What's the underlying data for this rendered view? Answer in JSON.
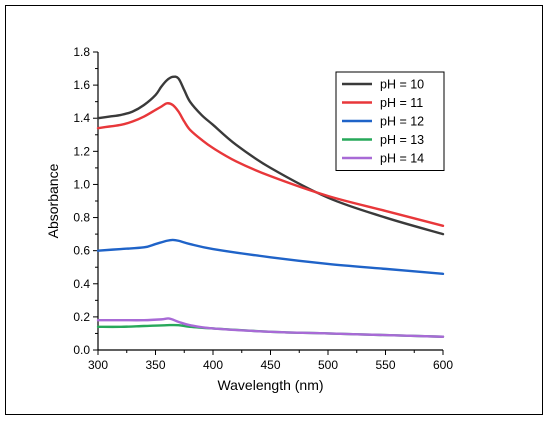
{
  "chart_data": {
    "type": "line",
    "title": "",
    "xlabel": "Wavelength (nm)",
    "ylabel": "Absorbance",
    "xlim": [
      300,
      600
    ],
    "ylim": [
      0.0,
      1.8
    ],
    "xticks": [
      300,
      350,
      400,
      450,
      500,
      550,
      600
    ],
    "xtick_labels": [
      "300",
      "350",
      "400",
      "450",
      "500",
      "550",
      "600"
    ],
    "yticks": [
      0.0,
      0.2,
      0.4,
      0.6,
      0.8,
      1.0,
      1.2,
      1.4,
      1.6,
      1.8
    ],
    "ytick_labels": [
      "0.0",
      "0.2",
      "0.4",
      "0.6",
      "0.8",
      "1.0",
      "1.2",
      "1.4",
      "1.6",
      "1.8"
    ],
    "grid": false,
    "legend_position": "top-right",
    "series": [
      {
        "name": "pH = 10",
        "color": "#3a3a3a",
        "x": [
          300,
          310,
          320,
          330,
          340,
          350,
          355,
          360,
          365,
          370,
          375,
          380,
          390,
          400,
          420,
          450,
          500,
          550,
          600
        ],
        "y": [
          1.4,
          1.41,
          1.42,
          1.44,
          1.48,
          1.54,
          1.59,
          1.63,
          1.65,
          1.64,
          1.57,
          1.5,
          1.42,
          1.36,
          1.24,
          1.1,
          0.92,
          0.8,
          0.7
        ]
      },
      {
        "name": "pH = 11",
        "color": "#e8373a",
        "x": [
          300,
          310,
          320,
          330,
          340,
          350,
          355,
          360,
          365,
          370,
          375,
          380,
          390,
          400,
          420,
          450,
          500,
          550,
          600
        ],
        "y": [
          1.34,
          1.35,
          1.36,
          1.38,
          1.41,
          1.45,
          1.47,
          1.49,
          1.48,
          1.44,
          1.38,
          1.33,
          1.27,
          1.22,
          1.14,
          1.05,
          0.93,
          0.84,
          0.75
        ]
      },
      {
        "name": "pH = 12",
        "color": "#1f63c8",
        "x": [
          300,
          320,
          340,
          350,
          360,
          365,
          370,
          380,
          400,
          450,
          500,
          550,
          600
        ],
        "y": [
          0.6,
          0.61,
          0.62,
          0.64,
          0.66,
          0.665,
          0.66,
          0.64,
          0.61,
          0.56,
          0.52,
          0.49,
          0.46
        ]
      },
      {
        "name": "pH = 13",
        "color": "#27a85a",
        "x": [
          300,
          320,
          340,
          360,
          370,
          380,
          400,
          450,
          500,
          550,
          600
        ],
        "y": [
          0.14,
          0.14,
          0.145,
          0.15,
          0.15,
          0.14,
          0.13,
          0.11,
          0.1,
          0.09,
          0.08
        ]
      },
      {
        "name": "pH = 14",
        "color": "#a86ad6",
        "x": [
          300,
          320,
          340,
          355,
          362,
          370,
          380,
          400,
          450,
          500,
          550,
          600
        ],
        "y": [
          0.18,
          0.18,
          0.18,
          0.185,
          0.19,
          0.17,
          0.15,
          0.13,
          0.11,
          0.1,
          0.09,
          0.08
        ]
      }
    ]
  }
}
